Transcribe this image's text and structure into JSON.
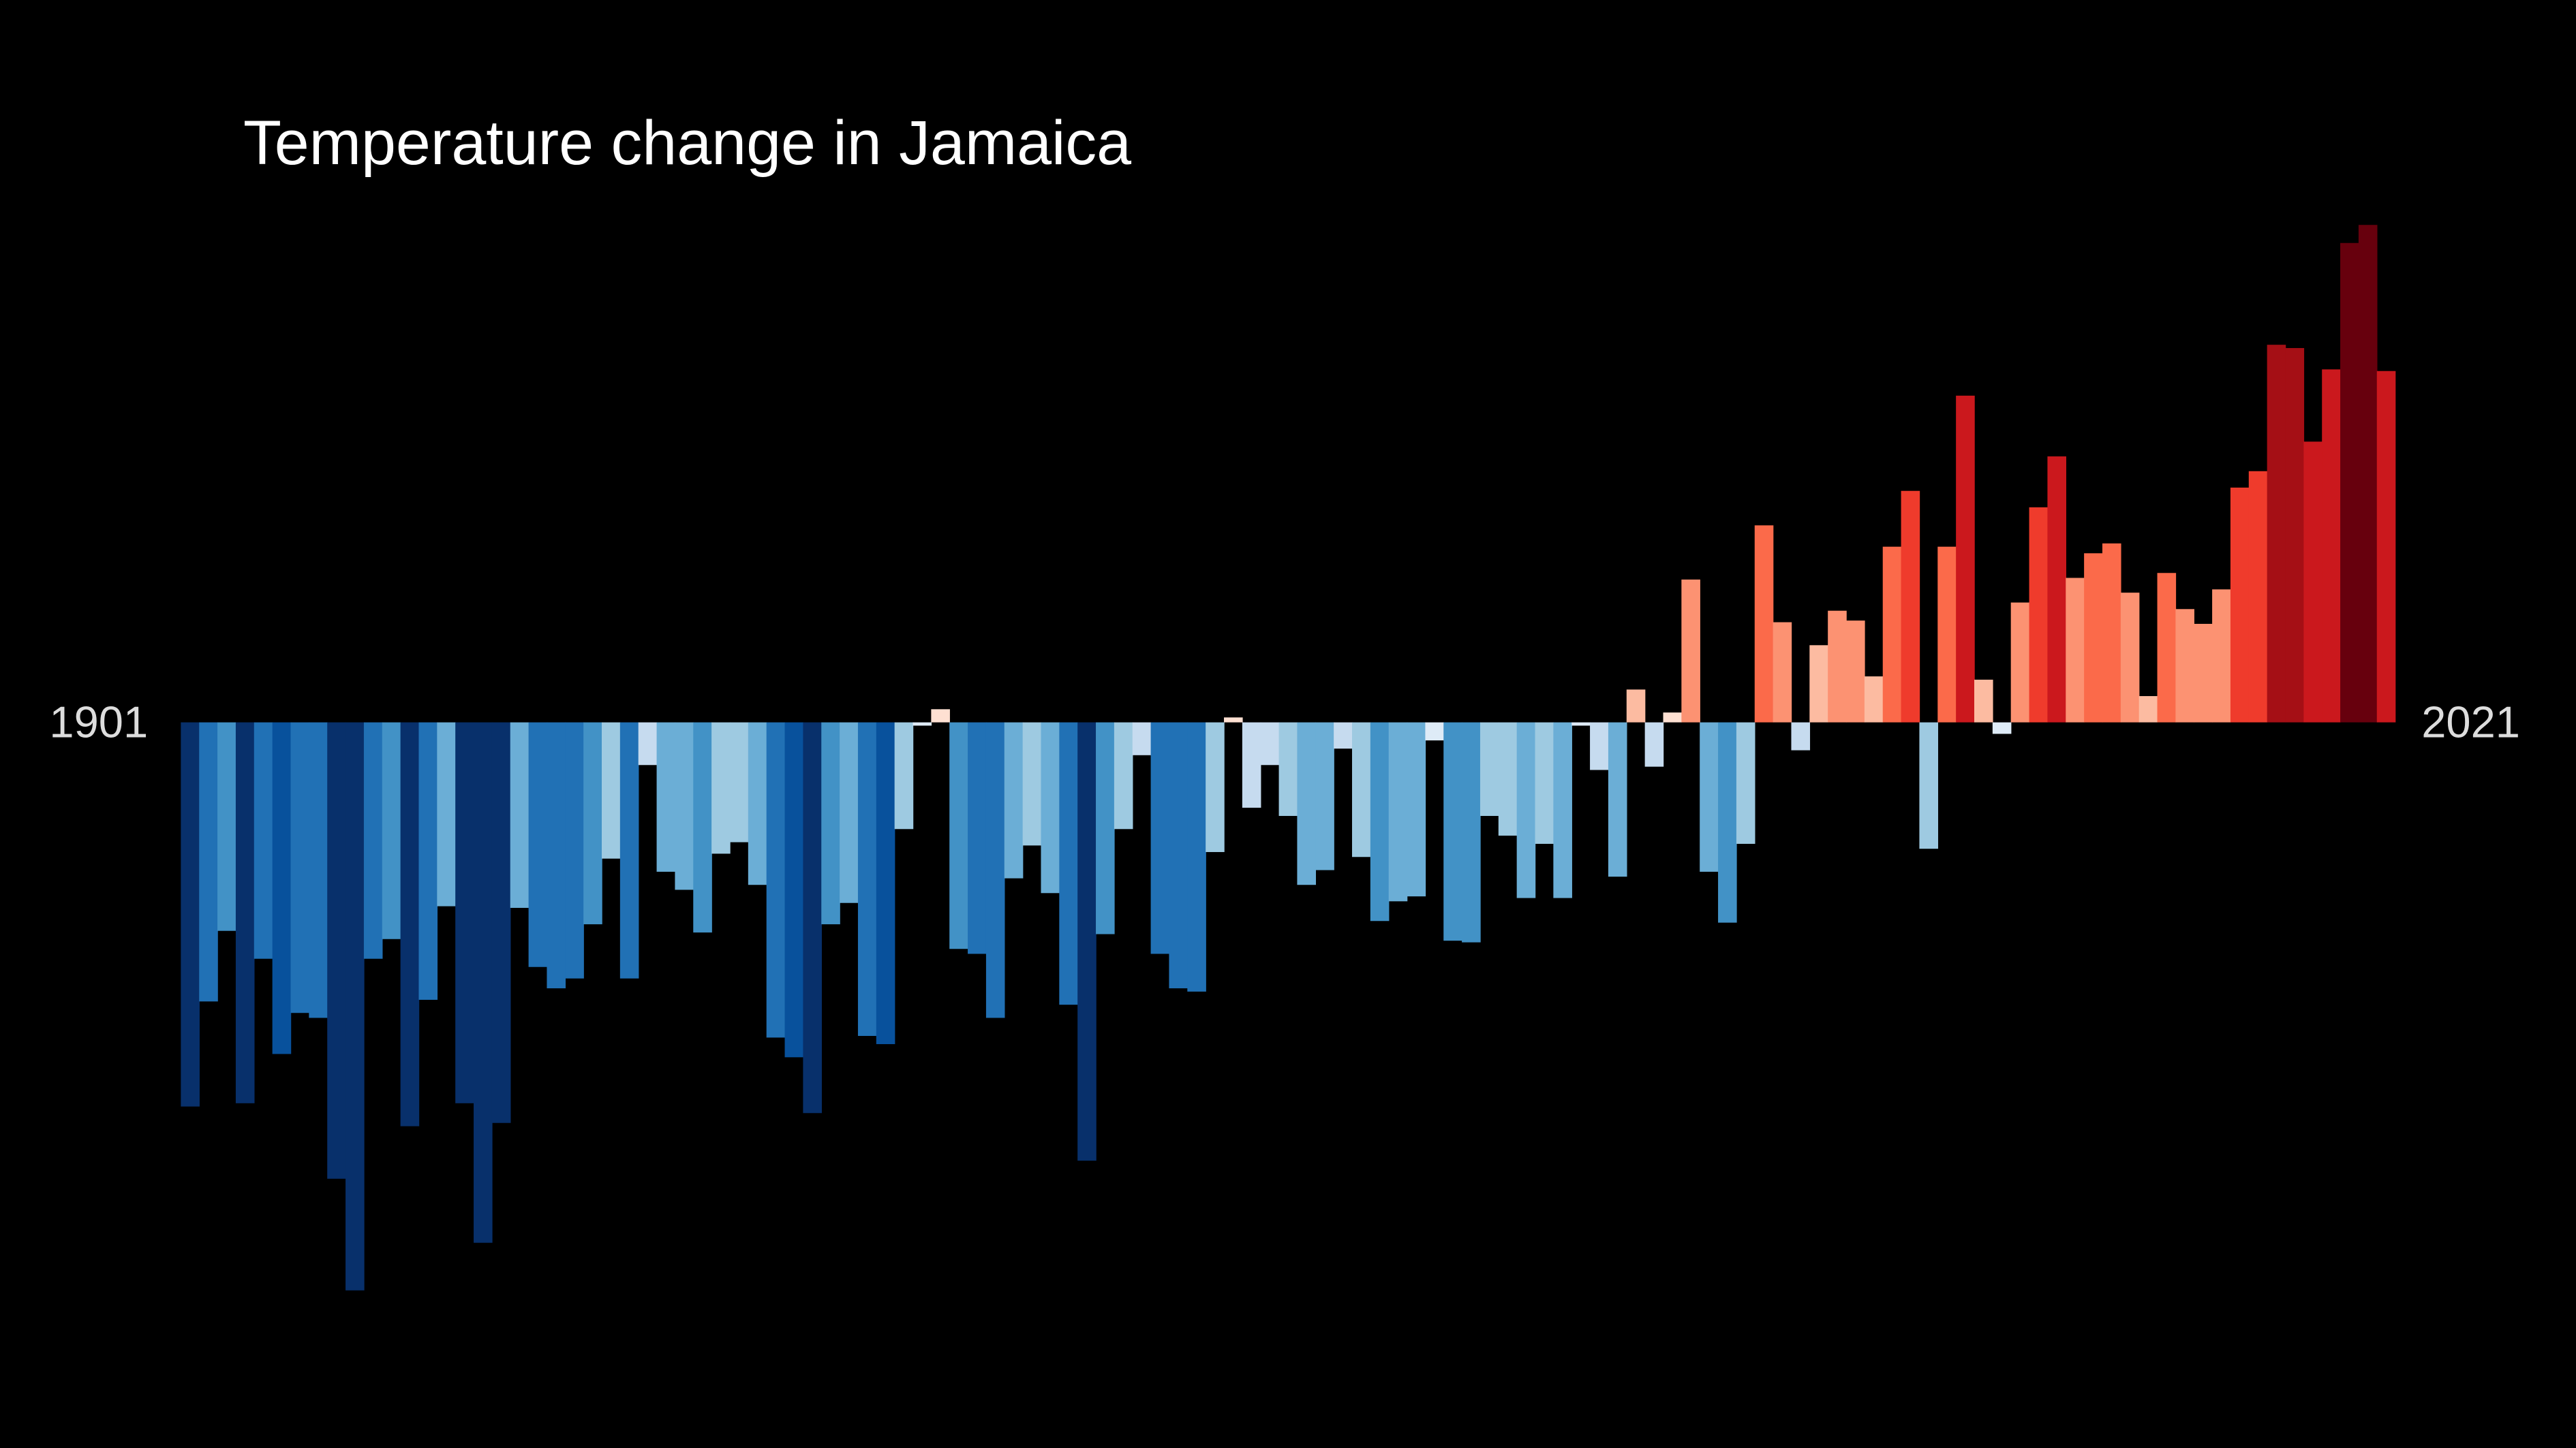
{
  "chart_data": {
    "type": "bar",
    "title": "Temperature change in Jamaica",
    "categories": [
      "1901",
      null,
      null,
      null,
      null,
      null,
      null,
      null,
      null,
      null,
      null,
      null,
      null,
      null,
      null,
      null,
      null,
      null,
      null,
      null,
      null,
      null,
      null,
      null,
      null,
      null,
      null,
      null,
      null,
      null,
      null,
      null,
      null,
      null,
      null,
      null,
      null,
      null,
      null,
      null,
      null,
      null,
      null,
      null,
      null,
      null,
      null,
      null,
      null,
      null,
      null,
      null,
      null,
      null,
      null,
      null,
      null,
      null,
      null,
      null,
      null,
      null,
      null,
      null,
      null,
      null,
      null,
      null,
      null,
      null,
      null,
      null,
      null,
      null,
      null,
      null,
      null,
      null,
      null,
      null,
      null,
      null,
      null,
      null,
      null,
      null,
      null,
      null,
      null,
      null,
      null,
      null,
      null,
      null,
      null,
      null,
      null,
      null,
      null,
      null,
      null,
      null,
      null,
      null,
      null,
      null,
      null,
      null,
      null,
      null,
      null,
      null,
      null,
      null,
      null,
      null,
      null,
      null,
      null,
      null,
      "2021"
    ],
    "values": [
      -2.34,
      -1.7,
      -1.27,
      -2.32,
      -1.44,
      -2.02,
      -1.77,
      -1.8,
      -2.78,
      -3.46,
      -1.44,
      -1.32,
      -2.46,
      -1.69,
      -1.12,
      -2.32,
      -3.17,
      -2.44,
      -1.13,
      -1.49,
      -1.62,
      -1.56,
      -1.23,
      -0.83,
      -1.56,
      -0.26,
      -0.91,
      -1.02,
      -1.28,
      -0.8,
      -0.73,
      -0.99,
      -1.92,
      -2.04,
      -2.38,
      -1.23,
      -1.1,
      -1.91,
      -1.96,
      -0.65,
      -0.02,
      0.08,
      -1.38,
      -1.41,
      -1.8,
      -0.95,
      -0.75,
      -1.04,
      -1.72,
      -2.67,
      -1.29,
      -0.65,
      -0.2,
      -1.41,
      -1.62,
      -1.64,
      -0.79,
      0.03,
      -0.52,
      -0.26,
      -0.57,
      -0.99,
      -0.9,
      -0.16,
      -0.82,
      -1.21,
      -1.09,
      -1.06,
      -0.11,
      -1.33,
      -1.34,
      -0.57,
      -0.69,
      -1.07,
      -0.74,
      -1.07,
      -0.02,
      -0.29,
      -0.94,
      0.2,
      -0.27,
      0.06,
      0.87,
      -0.91,
      -1.22,
      -0.74,
      1.2,
      0.61,
      -0.17,
      0.47,
      0.68,
      0.62,
      0.28,
      1.07,
      1.41,
      -0.77,
      1.07,
      1.99,
      0.26,
      -0.07,
      0.73,
      1.31,
      1.62,
      0.88,
      1.03,
      1.09,
      0.79,
      0.16,
      0.91,
      0.69,
      0.6,
      0.81,
      1.43,
      1.53,
      2.3,
      2.28,
      1.71,
      2.15,
      2.92,
      3.03,
      2.14
    ],
    "ylim": [
      -4.42,
      4.4
    ],
    "color_scale": [
      {
        "value": -2.2,
        "color": "#08306b"
      },
      {
        "value": -1.95,
        "color": "#08519c"
      },
      {
        "value": -1.4,
        "color": "#2171b5"
      },
      {
        "value": -1.15,
        "color": "#4292c6"
      },
      {
        "value": -0.85,
        "color": "#6baed6"
      },
      {
        "value": -0.55,
        "color": "#9ecae1"
      },
      {
        "value": -0.15,
        "color": "#c6dbef"
      },
      {
        "value": 0,
        "color": "#deebf7"
      },
      {
        "value": 0.15,
        "color": "#fee0d2"
      },
      {
        "value": 0.5,
        "color": "#fcbba1"
      },
      {
        "value": 0.9,
        "color": "#fc9272"
      },
      {
        "value": 1.2,
        "color": "#fb6a4a"
      },
      {
        "value": 1.6,
        "color": "#ef3b2c"
      },
      {
        "value": 2.2,
        "color": "#cb181d"
      },
      {
        "value": 2.5,
        "color": "#a50f15"
      },
      {
        "value": 4.4,
        "color": "#67000d"
      }
    ]
  }
}
